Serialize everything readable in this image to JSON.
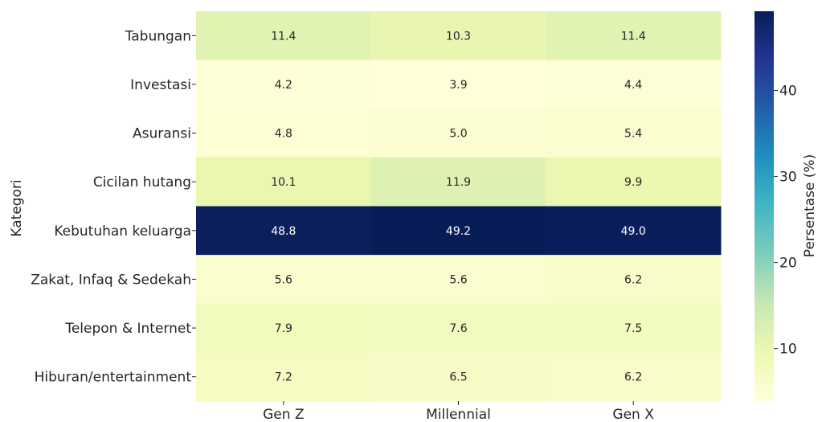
{
  "chart_data": {
    "type": "heatmap",
    "title": "",
    "xlabel": "",
    "ylabel": "Kategori",
    "columns": [
      "Gen Z",
      "Millennial",
      "Gen X"
    ],
    "rows": [
      "Tabungan",
      "Investasi",
      "Asuransi",
      "Cicilan hutang",
      "Kebutuhan keluarga",
      "Zakat, Infaq & Sedekah",
      "Telepon & Internet",
      "Hiburan/entertainment"
    ],
    "values": [
      [
        11.4,
        10.3,
        11.4
      ],
      [
        4.2,
        3.9,
        4.4
      ],
      [
        4.8,
        5.0,
        5.4
      ],
      [
        10.1,
        11.9,
        9.9
      ],
      [
        48.8,
        49.2,
        49.0
      ],
      [
        5.6,
        5.6,
        6.2
      ],
      [
        7.9,
        7.6,
        7.5
      ],
      [
        7.2,
        6.5,
        6.2
      ]
    ],
    "value_labels": [
      [
        "11.4",
        "10.3",
        "11.4"
      ],
      [
        "4.2",
        "3.9",
        "4.4"
      ],
      [
        "4.8",
        "5.0",
        "5.4"
      ],
      [
        "10.1",
        "11.9",
        "9.9"
      ],
      [
        "48.8",
        "49.2",
        "49.0"
      ],
      [
        "5.6",
        "5.6",
        "6.2"
      ],
      [
        "7.9",
        "7.6",
        "7.5"
      ],
      [
        "7.2",
        "6.5",
        "6.2"
      ]
    ],
    "colormap": "YlGnBu",
    "vmin": 3.9,
    "vmax": 49.2,
    "colorbar": {
      "label": "Persentase (%)",
      "ticks": [
        10,
        20,
        30,
        40
      ],
      "tick_labels": [
        "10",
        "20",
        "30",
        "40"
      ]
    }
  }
}
